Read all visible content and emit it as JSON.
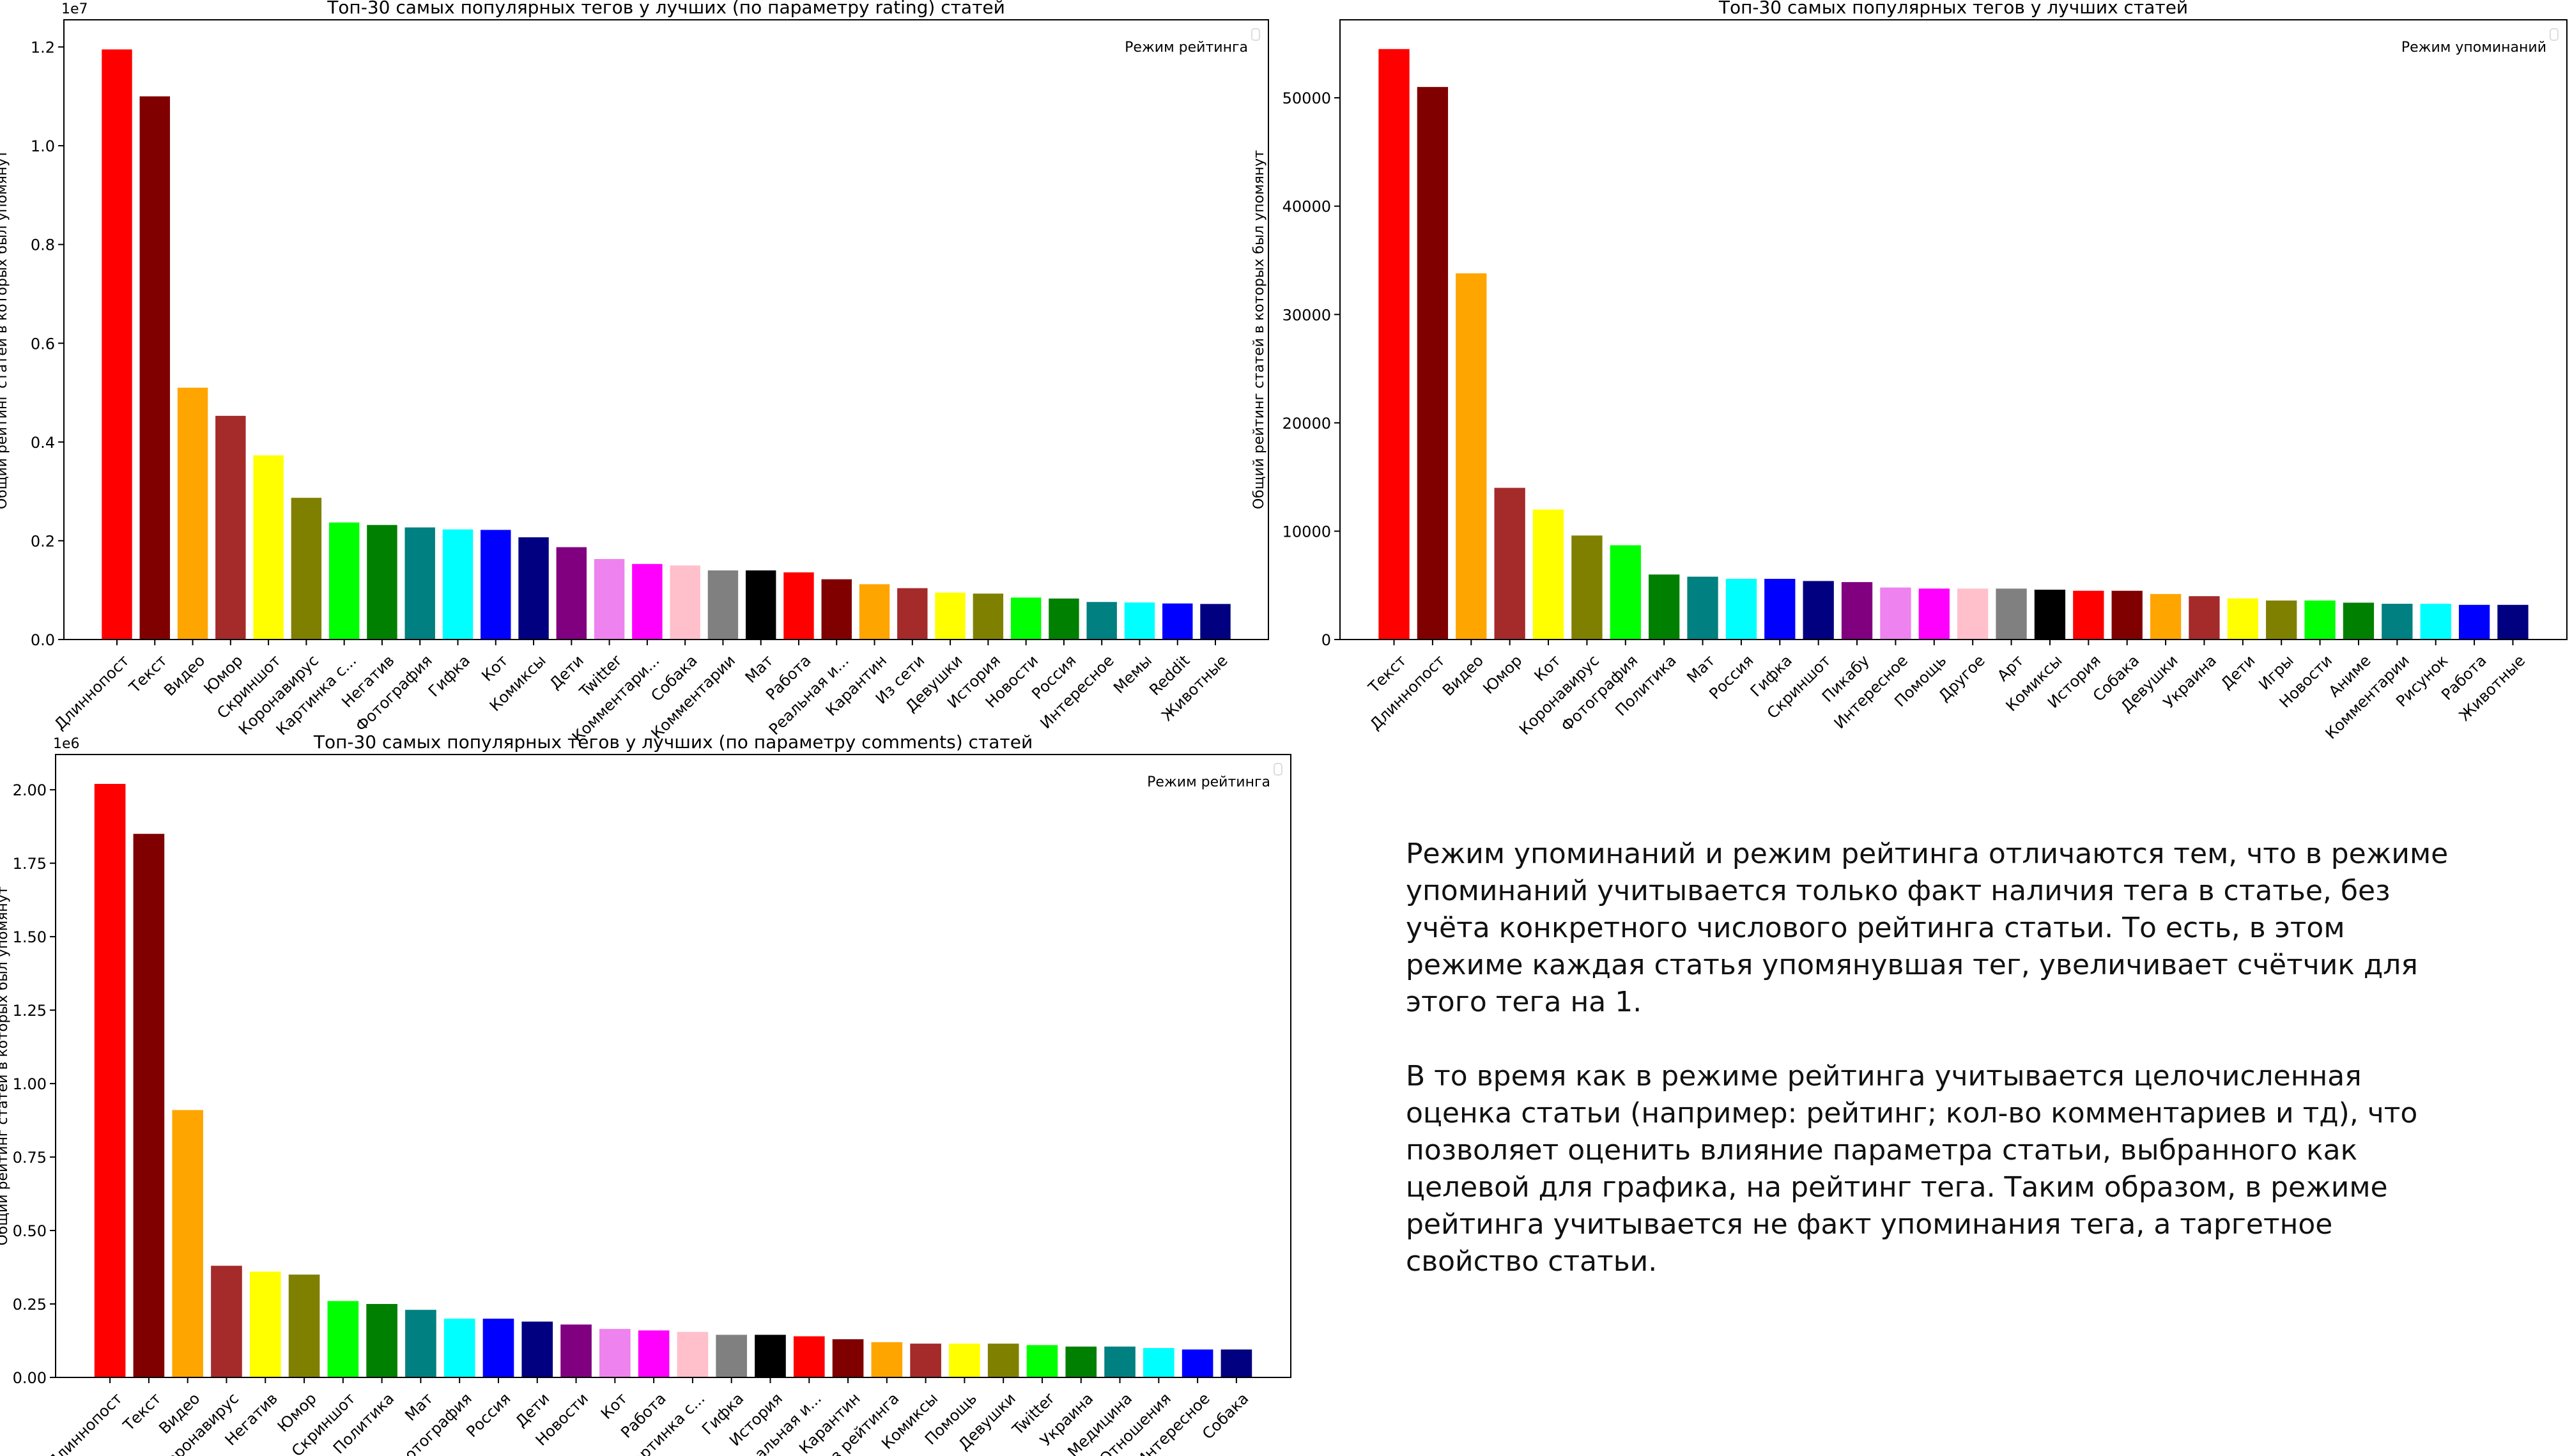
{
  "chart_data": [
    {
      "type": "bar",
      "title": "Топ-30 самых популярных тегов у лучших (по параметру rating) статей",
      "ylabel": "Общий рейтинг статей в которых был упомянут",
      "xlabel": "",
      "offset_text": "1e7",
      "legend_label": "Режим рейтинга",
      "legend_placement": "top-right",
      "grid": false,
      "ylim": [
        0,
        1.255
      ],
      "yticks": [
        0.0,
        0.2,
        0.4,
        0.6,
        0.8,
        1.0,
        1.2
      ],
      "ytick_labels": [
        "0.0",
        "0.2",
        "0.4",
        "0.6",
        "0.8",
        "1.0",
        "1.2"
      ],
      "categories": [
        "Длиннопост",
        "Текст",
        "Видео",
        "Юмор",
        "Скриншот",
        "Коронавирус",
        "Картинка с...",
        "Негатив",
        "Фотография",
        "Гифка",
        "Кот",
        "Комиксы",
        "Дети",
        "Twitter",
        "Комментари...",
        "Собака",
        "Комментарии",
        "Мат",
        "Работа",
        "Реальная и...",
        "Карантин",
        "Из сети",
        "Девушки",
        "История",
        "Новости",
        "Россия",
        "Интересное",
        "Мемы",
        "Reddit",
        "Животные"
      ],
      "values": [
        1.195,
        1.1,
        0.51,
        0.453,
        0.373,
        0.287,
        0.237,
        0.232,
        0.227,
        0.223,
        0.222,
        0.207,
        0.187,
        0.163,
        0.153,
        0.15,
        0.14,
        0.14,
        0.136,
        0.122,
        0.112,
        0.104,
        0.095,
        0.093,
        0.085,
        0.083,
        0.076,
        0.075,
        0.073,
        0.072
      ]
    },
    {
      "type": "bar",
      "title": "Топ-30 самых популярных тегов у лучших статей",
      "ylabel": "Общий рейтинг статей в которых был упомянут",
      "xlabel": "",
      "offset_text": "",
      "legend_label": "Режим упоминаний",
      "legend_placement": "top-right",
      "grid": false,
      "ylim": [
        0,
        57200
      ],
      "yticks": [
        0,
        10000,
        20000,
        30000,
        40000,
        50000
      ],
      "ytick_labels": [
        "0",
        "10000",
        "20000",
        "30000",
        "40000",
        "50000"
      ],
      "categories": [
        "Текст",
        "Длиннопост",
        "Видео",
        "Юмор",
        "Кот",
        "Коронавирус",
        "Фотография",
        "Политика",
        "Мат",
        "Россия",
        "Гифка",
        "Скриншот",
        "Пикабу",
        "Интересное",
        "Помощь",
        "Другое",
        "Арт",
        "Комиксы",
        "История",
        "Собака",
        "Девушки",
        "Украина",
        "Дети",
        "Игры",
        "Новости",
        "Аниме",
        "Комментарии",
        "Рисунок",
        "Работа",
        "Животные"
      ],
      "values": [
        54500,
        51000,
        33800,
        14000,
        12000,
        9600,
        8700,
        6000,
        5800,
        5600,
        5600,
        5400,
        5300,
        4800,
        4700,
        4700,
        4700,
        4600,
        4500,
        4500,
        4200,
        4000,
        3800,
        3600,
        3600,
        3400,
        3300,
        3300,
        3200,
        3200
      ]
    },
    {
      "type": "bar",
      "title": "Топ-30 самых популярных тегов у лучших (по параметру comments) статей",
      "ylabel": "Общий рейтинг статей в которых был упомянут",
      "xlabel": "",
      "offset_text": "1e6",
      "legend_label": "Режим рейтинга",
      "legend_placement": "top-right",
      "grid": false,
      "ylim": [
        0,
        2.12
      ],
      "yticks": [
        0.0,
        0.25,
        0.5,
        0.75,
        1.0,
        1.25,
        1.5,
        1.75,
        2.0
      ],
      "ytick_labels": [
        "0.00",
        "0.25",
        "0.50",
        "0.75",
        "1.00",
        "1.25",
        "1.50",
        "1.75",
        "2.00"
      ],
      "categories": [
        "Длиннопост",
        "Текст",
        "Видео",
        "Коронавирус",
        "Негатив",
        "Юмор",
        "Скриншот",
        "Политика",
        "Мат",
        "Фотография",
        "Россия",
        "Дети",
        "Новости",
        "Кот",
        "Работа",
        "Картинка с...",
        "Гифка",
        "История",
        "Реальная и...",
        "Карантин",
        "Без рейтинга",
        "Комиксы",
        "Помощь",
        "Девушки",
        "Twitter",
        "Украина",
        "Медицина",
        "Отношения",
        "Интересное",
        "Собака"
      ],
      "values": [
        2.02,
        1.85,
        0.91,
        0.38,
        0.36,
        0.35,
        0.26,
        0.25,
        0.23,
        0.2,
        0.2,
        0.19,
        0.18,
        0.165,
        0.16,
        0.155,
        0.145,
        0.145,
        0.14,
        0.13,
        0.12,
        0.115,
        0.115,
        0.115,
        0.11,
        0.105,
        0.105,
        0.1,
        0.095,
        0.095
      ]
    }
  ],
  "bar_colors": [
    "#ff0000",
    "#800000",
    "#ffa500",
    "#a52a2a",
    "#ffff00",
    "#808000",
    "#00ff00",
    "#008000",
    "#008080",
    "#00ffff",
    "#0000ff",
    "#000080",
    "#800080",
    "#ee82ee",
    "#ff00ff",
    "#ffc0cb",
    "#808080",
    "#000000"
  ],
  "description": {
    "paragraphs": [
      [
        "Режим упоминаний и режим рейтинга отличаются тем, что в режиме",
        "упоминаний учитывается только факт наличия тега в статье, без",
        "учёта конкретного числового рейтинга статьи. То есть, в этом",
        "режиме каждая статья упомянувшая тег, увеличивает счётчик для",
        "этого тега на 1."
      ],
      [
        "В то время как в режиме рейтинга учитывается целочисленная",
        "оценка статьи (например: рейтинг; кол-во комментариев и тд), что",
        "позволяет оценить влияние параметра статьи, выбранного как",
        "целевой для графика, на рейтинг тега. Таким образом, в режиме",
        "рейтинга учитывается не факт упоминания тега, а таргетное",
        "свойство статьи."
      ]
    ]
  }
}
